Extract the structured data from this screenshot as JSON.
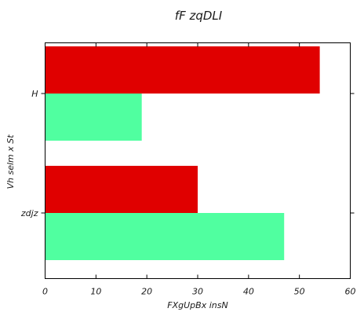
{
  "chart_data": {
    "type": "bar",
    "orientation": "horizontal",
    "title": "fF  zqDLI",
    "xlabel": "FXgUpBx insN",
    "ylabel": "Vh selm x St",
    "categories": [
      "H",
      "zdjz"
    ],
    "series": [
      {
        "values": [
          54,
          30
        ],
        "color": "#e00000"
      },
      {
        "values": [
          19,
          47
        ],
        "color": "#50ffa0"
      }
    ],
    "xlim": [
      0,
      60
    ],
    "xticks": [
      0,
      10,
      20,
      30,
      40,
      50,
      60
    ],
    "grid": false,
    "legend": "none"
  }
}
